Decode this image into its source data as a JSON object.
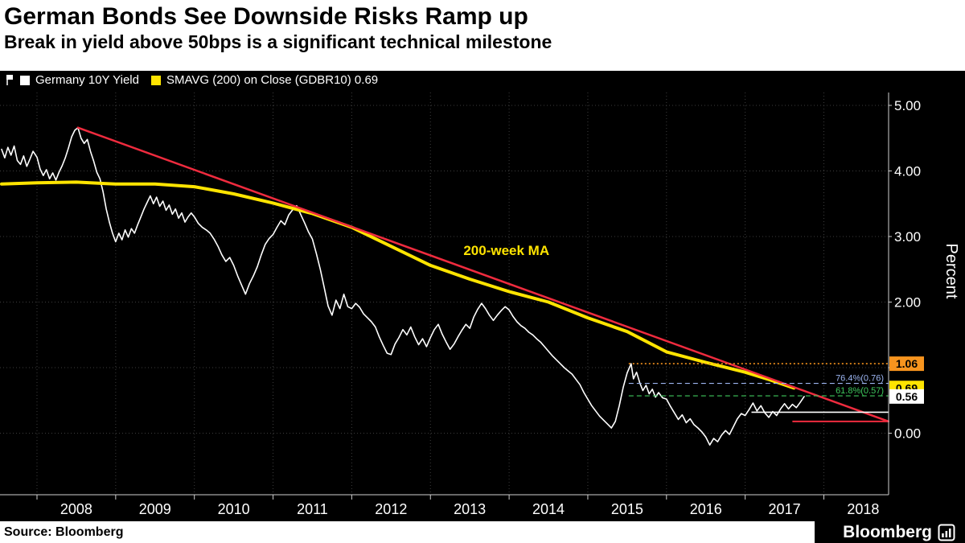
{
  "header": {
    "title": "German Bonds See Downside Risks Ramp up",
    "subtitle": "Break in yield above 50bps is a significant technical milestone"
  },
  "legend": {
    "items": [
      {
        "label": "Germany 10Y Yield",
        "color": "#ffffff"
      },
      {
        "label": "SMAVG (200) on Close (GDBR10) 0.69",
        "color": "#ffe400"
      }
    ]
  },
  "footer": {
    "source": "Source: Bloomberg",
    "brand": "Bloomberg"
  },
  "chart_data": {
    "type": "line",
    "title": "German Bonds See Downside Risks Ramp up",
    "subtitle": "Break in yield above 50bps is a significant technical milestone",
    "ylabel": "Percent",
    "x_range": [
      2007.53,
      2018.82
    ],
    "ylim": [
      -0.9,
      5.2
    ],
    "x_ticks": [
      2008,
      2009,
      2010,
      2011,
      2012,
      2013,
      2014,
      2015,
      2016,
      2017,
      2018
    ],
    "y_ticks": [
      0,
      1,
      2,
      3,
      4,
      5
    ],
    "y_tick_labels": [
      "0.00",
      "",
      "2.00",
      "3.00",
      "4.00",
      "5.00"
    ],
    "grid": true,
    "background": "#000000",
    "series": [
      {
        "name": "Germany 10Y Yield",
        "color": "#ffffff",
        "width": 1.6,
        "points": [
          [
            2007.55,
            4.33
          ],
          [
            2007.59,
            4.2
          ],
          [
            2007.63,
            4.36
          ],
          [
            2007.67,
            4.24
          ],
          [
            2007.71,
            4.38
          ],
          [
            2007.75,
            4.16
          ],
          [
            2007.79,
            4.1
          ],
          [
            2007.83,
            4.23
          ],
          [
            2007.87,
            4.07
          ],
          [
            2007.91,
            4.18
          ],
          [
            2007.95,
            4.3
          ],
          [
            2008,
            4.21
          ],
          [
            2008.04,
            4.03
          ],
          [
            2008.08,
            3.93
          ],
          [
            2008.12,
            4.02
          ],
          [
            2008.16,
            3.88
          ],
          [
            2008.2,
            3.97
          ],
          [
            2008.24,
            3.86
          ],
          [
            2008.28,
            3.98
          ],
          [
            2008.32,
            4.08
          ],
          [
            2008.36,
            4.2
          ],
          [
            2008.4,
            4.35
          ],
          [
            2008.44,
            4.52
          ],
          [
            2008.48,
            4.62
          ],
          [
            2008.52,
            4.66
          ],
          [
            2008.56,
            4.5
          ],
          [
            2008.6,
            4.42
          ],
          [
            2008.64,
            4.48
          ],
          [
            2008.68,
            4.3
          ],
          [
            2008.72,
            4.15
          ],
          [
            2008.76,
            3.98
          ],
          [
            2008.8,
            3.88
          ],
          [
            2008.84,
            3.68
          ],
          [
            2008.88,
            3.42
          ],
          [
            2008.92,
            3.22
          ],
          [
            2008.96,
            3.05
          ],
          [
            2009,
            2.92
          ],
          [
            2009.04,
            3.05
          ],
          [
            2009.08,
            2.95
          ],
          [
            2009.12,
            3.1
          ],
          [
            2009.16,
            2.99
          ],
          [
            2009.2,
            3.12
          ],
          [
            2009.24,
            3.05
          ],
          [
            2009.28,
            3.18
          ],
          [
            2009.32,
            3.3
          ],
          [
            2009.36,
            3.42
          ],
          [
            2009.4,
            3.52
          ],
          [
            2009.44,
            3.62
          ],
          [
            2009.48,
            3.5
          ],
          [
            2009.52,
            3.6
          ],
          [
            2009.56,
            3.46
          ],
          [
            2009.6,
            3.54
          ],
          [
            2009.64,
            3.4
          ],
          [
            2009.68,
            3.48
          ],
          [
            2009.72,
            3.34
          ],
          [
            2009.76,
            3.42
          ],
          [
            2009.8,
            3.28
          ],
          [
            2009.84,
            3.36
          ],
          [
            2009.88,
            3.22
          ],
          [
            2009.92,
            3.3
          ],
          [
            2009.96,
            3.36
          ],
          [
            2010,
            3.3
          ],
          [
            2010.05,
            3.2
          ],
          [
            2010.1,
            3.14
          ],
          [
            2010.15,
            3.1
          ],
          [
            2010.2,
            3.05
          ],
          [
            2010.25,
            2.96
          ],
          [
            2010.3,
            2.85
          ],
          [
            2010.35,
            2.72
          ],
          [
            2010.4,
            2.62
          ],
          [
            2010.45,
            2.68
          ],
          [
            2010.5,
            2.56
          ],
          [
            2010.55,
            2.4
          ],
          [
            2010.6,
            2.26
          ],
          [
            2010.65,
            2.12
          ],
          [
            2010.7,
            2.28
          ],
          [
            2010.75,
            2.4
          ],
          [
            2010.8,
            2.54
          ],
          [
            2010.85,
            2.72
          ],
          [
            2010.9,
            2.88
          ],
          [
            2010.95,
            2.97
          ],
          [
            2011,
            3.03
          ],
          [
            2011.05,
            3.14
          ],
          [
            2011.1,
            3.24
          ],
          [
            2011.15,
            3.18
          ],
          [
            2011.2,
            3.33
          ],
          [
            2011.25,
            3.41
          ],
          [
            2011.3,
            3.47
          ],
          [
            2011.35,
            3.34
          ],
          [
            2011.4,
            3.21
          ],
          [
            2011.45,
            3.07
          ],
          [
            2011.5,
            2.96
          ],
          [
            2011.55,
            2.74
          ],
          [
            2011.6,
            2.5
          ],
          [
            2011.65,
            2.22
          ],
          [
            2011.7,
            1.94
          ],
          [
            2011.75,
            1.8
          ],
          [
            2011.8,
            2.03
          ],
          [
            2011.85,
            1.9
          ],
          [
            2011.9,
            2.12
          ],
          [
            2011.95,
            1.93
          ],
          [
            2012,
            1.9
          ],
          [
            2012.05,
            1.98
          ],
          [
            2012.1,
            1.92
          ],
          [
            2012.15,
            1.82
          ],
          [
            2012.2,
            1.76
          ],
          [
            2012.25,
            1.7
          ],
          [
            2012.3,
            1.62
          ],
          [
            2012.35,
            1.47
          ],
          [
            2012.4,
            1.34
          ],
          [
            2012.45,
            1.22
          ],
          [
            2012.5,
            1.2
          ],
          [
            2012.55,
            1.36
          ],
          [
            2012.6,
            1.46
          ],
          [
            2012.65,
            1.58
          ],
          [
            2012.7,
            1.5
          ],
          [
            2012.75,
            1.62
          ],
          [
            2012.8,
            1.47
          ],
          [
            2012.85,
            1.35
          ],
          [
            2012.9,
            1.44
          ],
          [
            2012.95,
            1.32
          ],
          [
            2013,
            1.46
          ],
          [
            2013.05,
            1.58
          ],
          [
            2013.1,
            1.66
          ],
          [
            2013.15,
            1.51
          ],
          [
            2013.2,
            1.39
          ],
          [
            2013.25,
            1.28
          ],
          [
            2013.3,
            1.36
          ],
          [
            2013.35,
            1.47
          ],
          [
            2013.4,
            1.57
          ],
          [
            2013.45,
            1.66
          ],
          [
            2013.5,
            1.6
          ],
          [
            2013.55,
            1.77
          ],
          [
            2013.6,
            1.89
          ],
          [
            2013.65,
            1.98
          ],
          [
            2013.7,
            1.9
          ],
          [
            2013.75,
            1.8
          ],
          [
            2013.8,
            1.72
          ],
          [
            2013.85,
            1.8
          ],
          [
            2013.9,
            1.87
          ],
          [
            2013.95,
            1.93
          ],
          [
            2014,
            1.88
          ],
          [
            2014.05,
            1.78
          ],
          [
            2014.1,
            1.7
          ],
          [
            2014.15,
            1.64
          ],
          [
            2014.2,
            1.6
          ],
          [
            2014.25,
            1.54
          ],
          [
            2014.3,
            1.5
          ],
          [
            2014.35,
            1.44
          ],
          [
            2014.4,
            1.39
          ],
          [
            2014.45,
            1.32
          ],
          [
            2014.5,
            1.25
          ],
          [
            2014.55,
            1.18
          ],
          [
            2014.6,
            1.12
          ],
          [
            2014.65,
            1.06
          ],
          [
            2014.7,
            1.0
          ],
          [
            2014.75,
            0.95
          ],
          [
            2014.8,
            0.9
          ],
          [
            2014.85,
            0.82
          ],
          [
            2014.9,
            0.74
          ],
          [
            2014.95,
            0.62
          ],
          [
            2015,
            0.52
          ],
          [
            2015.05,
            0.42
          ],
          [
            2015.1,
            0.34
          ],
          [
            2015.15,
            0.26
          ],
          [
            2015.2,
            0.2
          ],
          [
            2015.25,
            0.14
          ],
          [
            2015.3,
            0.08
          ],
          [
            2015.35,
            0.18
          ],
          [
            2015.4,
            0.42
          ],
          [
            2015.45,
            0.7
          ],
          [
            2015.5,
            0.92
          ],
          [
            2015.55,
            1.06
          ],
          [
            2015.58,
            0.83
          ],
          [
            2015.62,
            0.93
          ],
          [
            2015.66,
            0.77
          ],
          [
            2015.7,
            0.65
          ],
          [
            2015.74,
            0.73
          ],
          [
            2015.78,
            0.6
          ],
          [
            2015.82,
            0.67
          ],
          [
            2015.86,
            0.55
          ],
          [
            2015.9,
            0.62
          ],
          [
            2015.95,
            0.54
          ],
          [
            2016,
            0.52
          ],
          [
            2016.05,
            0.41
          ],
          [
            2016.1,
            0.31
          ],
          [
            2016.15,
            0.21
          ],
          [
            2016.2,
            0.28
          ],
          [
            2016.25,
            0.16
          ],
          [
            2016.3,
            0.22
          ],
          [
            2016.35,
            0.13
          ],
          [
            2016.4,
            0.08
          ],
          [
            2016.45,
            0.02
          ],
          [
            2016.5,
            -0.06
          ],
          [
            2016.55,
            -0.18
          ],
          [
            2016.6,
            -0.08
          ],
          [
            2016.65,
            -0.13
          ],
          [
            2016.7,
            -0.03
          ],
          [
            2016.75,
            0.04
          ],
          [
            2016.8,
            -0.02
          ],
          [
            2016.85,
            0.1
          ],
          [
            2016.9,
            0.22
          ],
          [
            2016.95,
            0.3
          ],
          [
            2017,
            0.27
          ],
          [
            2017.05,
            0.36
          ],
          [
            2017.1,
            0.46
          ],
          [
            2017.15,
            0.34
          ],
          [
            2017.2,
            0.42
          ],
          [
            2017.25,
            0.31
          ],
          [
            2017.3,
            0.24
          ],
          [
            2017.35,
            0.33
          ],
          [
            2017.4,
            0.27
          ],
          [
            2017.45,
            0.37
          ],
          [
            2017.5,
            0.45
          ],
          [
            2017.55,
            0.37
          ],
          [
            2017.6,
            0.44
          ],
          [
            2017.65,
            0.39
          ],
          [
            2017.7,
            0.47
          ],
          [
            2017.75,
            0.56
          ]
        ]
      },
      {
        "name": "SMAVG (200) on Close (GDBR10)",
        "color": "#ffe400",
        "width": 4,
        "points": [
          [
            2007.55,
            3.8
          ],
          [
            2008,
            3.82
          ],
          [
            2008.5,
            3.83
          ],
          [
            2009,
            3.8
          ],
          [
            2009.5,
            3.8
          ],
          [
            2010,
            3.76
          ],
          [
            2010.5,
            3.65
          ],
          [
            2011,
            3.51
          ],
          [
            2011.5,
            3.35
          ],
          [
            2012,
            3.14
          ],
          [
            2012.5,
            2.85
          ],
          [
            2013,
            2.56
          ],
          [
            2013.5,
            2.35
          ],
          [
            2014,
            2.16
          ],
          [
            2014.5,
            2.0
          ],
          [
            2015,
            1.76
          ],
          [
            2015.5,
            1.55
          ],
          [
            2016,
            1.24
          ],
          [
            2016.5,
            1.08
          ],
          [
            2017,
            0.93
          ],
          [
            2017.3,
            0.82
          ],
          [
            2017.62,
            0.69
          ]
        ]
      },
      {
        "name": "Downtrend resistance line",
        "color": "#ef2b3e",
        "width": 2.5,
        "points": [
          [
            2008.52,
            4.66
          ],
          [
            2018.82,
            0.18
          ]
        ]
      }
    ],
    "levels": [
      {
        "name": "fib-100-line",
        "value": 1.06,
        "x_start": 2015.52,
        "color": "#f7941e",
        "style": "dotted",
        "width": 1.6
      },
      {
        "name": "fib-76-line",
        "value": 0.76,
        "x_start": 2015.52,
        "color": "#9db6f2",
        "style": "dashed",
        "width": 1.2,
        "label": "76.4%(0.76)",
        "label_color": "#9db6f2"
      },
      {
        "name": "fib-61-line",
        "value": 0.57,
        "x_start": 2015.52,
        "color": "#3fc95e",
        "style": "dashed",
        "width": 1.2,
        "label": "61.8%(0.57)",
        "label_color": "#3fc95e"
      },
      {
        "name": "support-line-white",
        "value": 0.32,
        "x_start": 2017.08,
        "color": "#ffffff",
        "style": "solid",
        "width": 1.6
      },
      {
        "name": "support-line-red",
        "value": 0.18,
        "x_start": 2017.6,
        "color": "#ef2b3e",
        "style": "solid",
        "width": 2
      }
    ],
    "annotations": [
      {
        "text": "200-week MA",
        "x": 2013.42,
        "y": 2.72,
        "color": "#ffe400"
      }
    ],
    "price_labels": [
      {
        "text": "1.06",
        "value": 1.06,
        "bg": "#f7941e",
        "fg": "#000000"
      },
      {
        "text": "0.69",
        "value": 0.69,
        "bg": "#ffe400",
        "fg": "#000000"
      },
      {
        "text": "0.56",
        "value": 0.56,
        "bg": "#ffffff",
        "fg": "#000000"
      }
    ],
    "legend_position": "top-left"
  }
}
